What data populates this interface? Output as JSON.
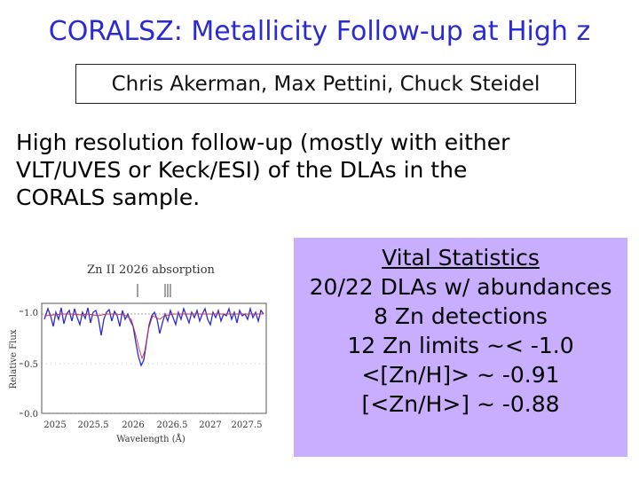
{
  "slide": {
    "title": "CORALSZ: Metallicity Follow-up at High z",
    "authors": "Chris Akerman, Max Pettini, Chuck Steidel",
    "intro_lines": [
      "High resolution follow-up (mostly with either",
      "VLT/UVES or Keck/ESI) of the DLAs in the",
      "CORALS sample."
    ]
  },
  "stats": {
    "heading": "Vital Statistics",
    "lines": [
      "20/22 DLAs w/ abundances",
      "8 Zn detections",
      "12 Zn limits ~< -1.0",
      "<[Zn/H]> ~ -0.91",
      "[<Zn/H>] ~ -0.88"
    ]
  },
  "plot": {
    "title": "Zn II 2026 absorption",
    "ylabel": "Relative Flux",
    "xlabel": "Wavelength (Å)",
    "x_ticks": [
      "2025",
      "2025.5",
      "2026",
      "2026.5",
      "2027",
      "2027.5"
    ],
    "y_ticks": [
      "0.0",
      "0.5",
      "1.0"
    ],
    "colors": {
      "spectrum_blue": "#2a2ad2",
      "spectrum_red": "#cc3344"
    }
  }
}
